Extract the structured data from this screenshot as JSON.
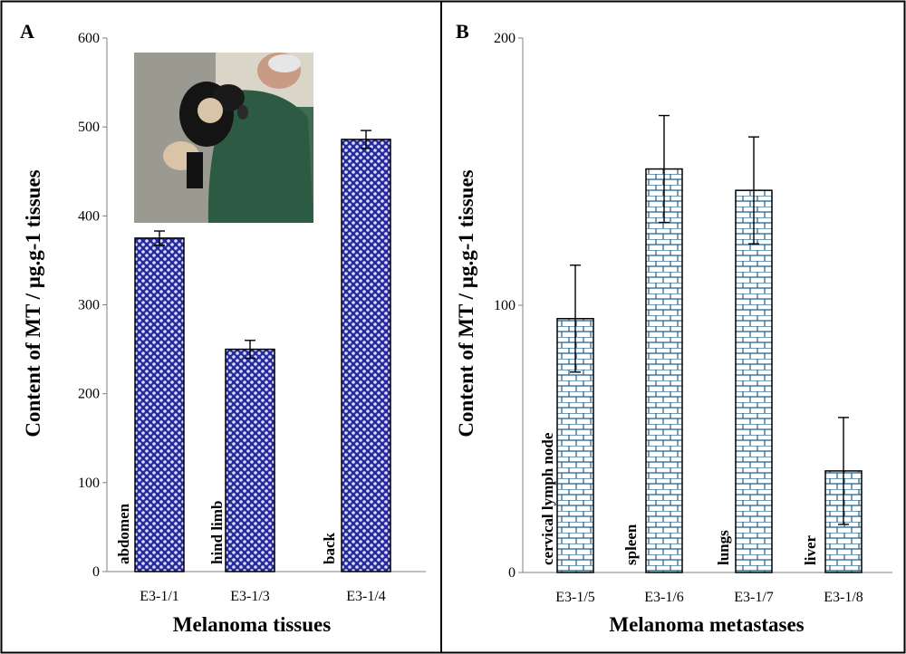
{
  "colors": {
    "panel_a_bar_fill": "#2a2a9a",
    "panel_a_bar_dots": "#d6e0ff",
    "panel_b_bar_fill": "#ffffff",
    "panel_b_bricks": "#1f5f8a",
    "axis": "#808080",
    "frame": "#000000"
  },
  "chart_data": [
    {
      "type": "bar",
      "panel": "A",
      "categories": [
        "E3-1/1",
        "E3-1/3",
        "E3-1/4"
      ],
      "bar_labels": [
        "abdomen",
        "hind limb",
        "back"
      ],
      "values": [
        375,
        250,
        486
      ],
      "errors": [
        8,
        10,
        10
      ],
      "xlabel": "Melanoma tissues",
      "ylabel": "Content of MT / µg.g-1 tissues",
      "ylim": [
        0,
        600
      ],
      "yticks": [
        0,
        100,
        200,
        300,
        400,
        500,
        600
      ],
      "pattern": "dots",
      "inset_image": "photo of a person holding a black pig"
    },
    {
      "type": "bar",
      "panel": "B",
      "categories": [
        "E3-1/5",
        "E3-1/6",
        "E3-1/7",
        "E3-1/8"
      ],
      "bar_labels": [
        "cervical lymph node",
        "spleen",
        "lungs",
        "liver"
      ],
      "values": [
        95,
        151,
        143,
        38
      ],
      "errors": [
        20,
        20,
        20,
        20
      ],
      "xlabel": "Melanoma metastases",
      "ylabel": "Content of MT / µg.g-1 tissues",
      "ylim": [
        0,
        200
      ],
      "yticks": [
        0,
        100,
        200
      ],
      "pattern": "bricks"
    }
  ]
}
